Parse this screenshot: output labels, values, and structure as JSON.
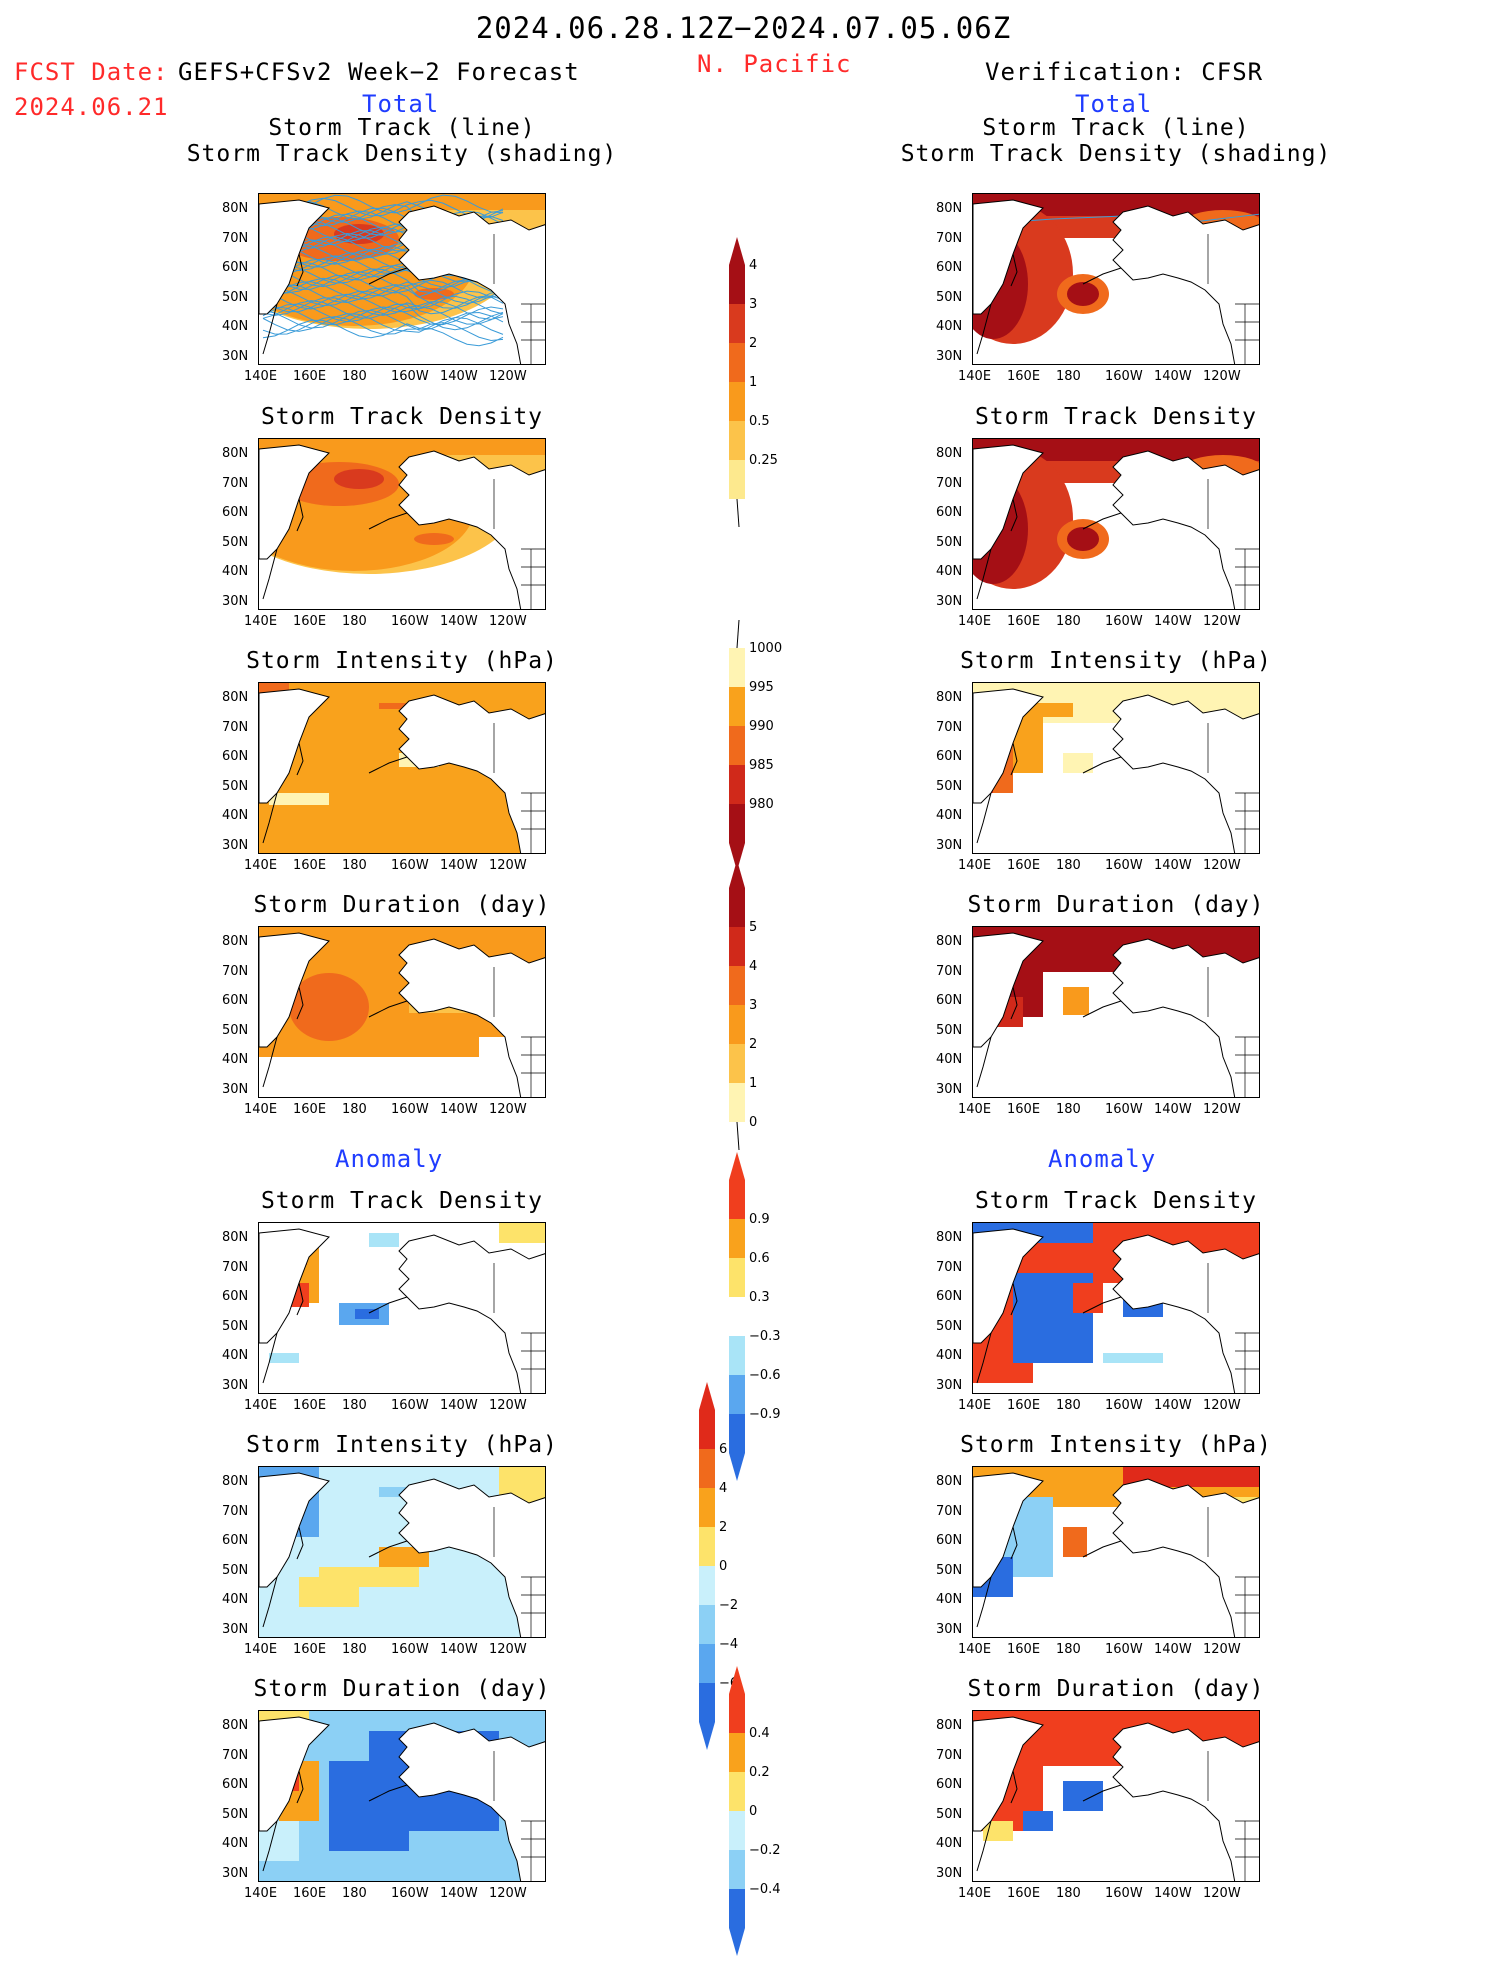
{
  "header": {
    "title": "2024.06.28.12Z−2024.07.05.06Z",
    "region": "N. Pacific",
    "fcst_label": "FCST Date:",
    "fcst_model": "GEFS+CFSv2 Week−2 Forecast",
    "fcst_date": "2024.06.21",
    "verification": "Verification: CFSR",
    "total_left": "Total",
    "total_right": "Total",
    "anomaly_left": "Anomaly",
    "anomaly_right": "Anomaly"
  },
  "panel_titles": {
    "track_line": "Storm Track (line)",
    "track_shading": "Storm Track Density (shading)",
    "density": "Storm Track Density",
    "intensity": "Storm Intensity (hPa)",
    "duration": "Storm Duration (day)"
  },
  "axes": {
    "lon_ticks": [
      "140E",
      "160E",
      "180",
      "160W",
      "140W",
      "120W"
    ],
    "lat_ticks": [
      "80N",
      "70N",
      "60N",
      "50N",
      "40N",
      "30N"
    ]
  },
  "colorbars": {
    "density_total": {
      "labels": [
        "4",
        "3",
        "2",
        "1",
        "0.5",
        "0.25"
      ],
      "colors": [
        "#a50f15",
        "#d93a1e",
        "#f06a1c",
        "#f99a1c",
        "#fcc34a",
        "#fde98e"
      ]
    },
    "intensity_total": {
      "labels": [
        "1000",
        "995",
        "990",
        "985",
        "980"
      ],
      "colors": [
        "#fff4b3",
        "#f9a21c",
        "#f06a1c",
        "#d0291a",
        "#a50f15"
      ]
    },
    "duration_total": {
      "labels": [
        "5",
        "4",
        "3",
        "2",
        "1",
        "0"
      ],
      "colors": [
        "#a50f15",
        "#d0291a",
        "#f06a1c",
        "#f99a1c",
        "#fcc34a",
        "#fff4b3"
      ]
    },
    "density_anom": {
      "labels": [
        "0.9",
        "0.6",
        "0.3",
        "−0.3",
        "−0.6",
        "−0.9"
      ],
      "colors": [
        "#f03e1e",
        "#f9a21c",
        "#fde36a",
        "#ffffff",
        "#a9e4f7",
        "#5aa7ef",
        "#2a6de0"
      ]
    },
    "intensity_anom": {
      "labels": [
        "6",
        "4",
        "2",
        "0",
        "−2",
        "−4",
        "−6"
      ],
      "colors": [
        "#e02a1a",
        "#f06a1c",
        "#f9a21c",
        "#fde36a",
        "#c9f0fb",
        "#8cd0f5",
        "#5aa7ef",
        "#2a6de0"
      ]
    },
    "duration_anom": {
      "labels": [
        "0.4",
        "0.2",
        "0",
        "−0.2",
        "−0.4"
      ],
      "colors": [
        "#f03e1e",
        "#f9a21c",
        "#fde36a",
        "#c9f0fb",
        "#8cd0f5",
        "#2a6de0"
      ]
    }
  },
  "palette": {
    "land": "#ffffff",
    "track_line": "#3a9bd8",
    "border": "#000000"
  }
}
